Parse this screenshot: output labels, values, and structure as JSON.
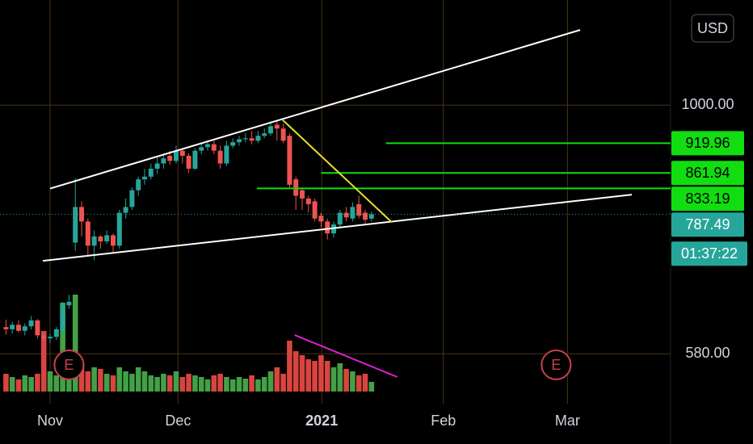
{
  "chart_data": {
    "type": "candlestick",
    "currency": "USD",
    "countdown": "01:37:22",
    "x": [
      -7,
      -6,
      -5,
      -4,
      -3,
      -2,
      -1,
      0,
      1,
      2,
      3,
      4,
      5,
      6,
      7,
      8,
      9,
      10,
      11,
      12,
      13,
      14,
      15,
      16,
      17,
      18,
      19,
      20,
      21,
      22,
      23,
      24,
      25,
      26,
      27,
      28,
      29,
      30,
      31,
      32,
      33,
      34,
      35,
      36,
      37,
      38,
      39,
      40,
      41,
      42,
      43,
      44,
      45,
      46,
      47,
      48,
      49,
      50,
      51
    ],
    "open": [
      615,
      612,
      618,
      610,
      616,
      624,
      604,
      600,
      602,
      609,
      645,
      740,
      800,
      775,
      735,
      750,
      742,
      752,
      735,
      790,
      800,
      830,
      850,
      855,
      870,
      880,
      895,
      885,
      905,
      895,
      870,
      905,
      912,
      918,
      905,
      880,
      915,
      922,
      928,
      930,
      925,
      935,
      940,
      958,
      950,
      935,
      850,
      830,
      815,
      810,
      785,
      775,
      755,
      770,
      790,
      780,
      805,
      790,
      780
    ],
    "high": [
      625,
      622,
      624,
      620,
      630,
      626,
      608,
      606,
      615,
      650,
      660,
      852,
      810,
      780,
      760,
      752,
      760,
      755,
      795,
      815,
      835,
      855,
      870,
      880,
      895,
      900,
      905,
      915,
      910,
      900,
      910,
      920,
      925,
      928,
      915,
      925,
      930,
      935,
      940,
      945,
      945,
      950,
      965,
      965,
      960,
      940,
      855,
      835,
      820,
      815,
      790,
      780,
      775,
      795,
      800,
      808,
      820,
      795,
      792
    ],
    "low": [
      605,
      606,
      608,
      604,
      612,
      600,
      596,
      594,
      598,
      607,
      640,
      727,
      750,
      718,
      712,
      730,
      738,
      725,
      730,
      780,
      795,
      820,
      840,
      850,
      860,
      870,
      878,
      880,
      880,
      862,
      868,
      898,
      905,
      898,
      870,
      875,
      910,
      915,
      922,
      918,
      920,
      930,
      935,
      925,
      920,
      835,
      795,
      795,
      790,
      775,
      765,
      745,
      748,
      765,
      775,
      775,
      780,
      772,
      775
    ],
    "close": [
      612,
      618,
      610,
      616,
      624,
      604,
      600,
      602,
      612,
      645,
      650,
      800,
      775,
      735,
      750,
      742,
      752,
      735,
      790,
      800,
      830,
      850,
      855,
      870,
      880,
      890,
      885,
      905,
      895,
      870,
      905,
      912,
      918,
      905,
      880,
      915,
      922,
      928,
      930,
      925,
      935,
      940,
      955,
      950,
      925,
      840,
      820,
      815,
      805,
      780,
      775,
      755,
      770,
      790,
      782,
      800,
      785,
      778,
      787.49
    ],
    "volume": [
      22,
      18,
      15,
      20,
      18,
      22,
      75,
      25,
      20,
      110,
      40,
      120,
      35,
      25,
      30,
      28,
      22,
      20,
      30,
      25,
      22,
      30,
      25,
      20,
      18,
      22,
      20,
      25,
      18,
      22,
      20,
      18,
      15,
      20,
      22,
      18,
      15,
      18,
      16,
      20,
      15,
      18,
      25,
      30,
      22,
      63,
      50,
      45,
      40,
      38,
      45,
      38,
      30,
      35,
      28,
      25,
      20,
      22,
      12
    ],
    "up_color": "#26a69a",
    "down_color": "#ef5350",
    "volume_up_color": "#43a047",
    "volume_down_color": "#d8443f",
    "xlim": [
      -7.95,
      98.46
    ],
    "xticks": [
      {
        "value": 0,
        "label": "Nov"
      },
      {
        "value": 20.3,
        "label": "Dec"
      },
      {
        "value": 43.1,
        "label": "2021"
      },
      {
        "value": 62.4,
        "label": "Feb"
      },
      {
        "value": 82.1,
        "label": "Mar"
      }
    ],
    "ylim": [
      534,
      1259
    ],
    "log_scale": true,
    "yticks": [
      {
        "value": 1000,
        "label": "1000.00"
      },
      {
        "value": 580,
        "label": "580.00"
      }
    ],
    "volume_lim": [
      0,
      130
    ],
    "grid": true,
    "grid_color": "#4a3218",
    "levels": [
      {
        "value": 919.96,
        "from": 53.3
      },
      {
        "value": 861.94,
        "from": 43
      },
      {
        "value": 833.19,
        "from": 32.8
      }
    ],
    "level_color": "#11dd11",
    "last_price_color": "#26a69a",
    "trendlines": [
      {
        "x1": 0,
        "p1": 833,
        "x2": 84.1,
        "p2": 1179,
        "color": "#ffffff"
      },
      {
        "x1": -1.15,
        "p1": 711,
        "x2": 92.3,
        "p2": 822,
        "color": "#ffffff"
      },
      {
        "x1": 36.9,
        "p1": 968,
        "x2": 54.2,
        "p2": 774,
        "color": "#e8e020"
      }
    ],
    "volume_trendline": {
      "x1": 38.8,
      "v1": 70,
      "x2": 55.1,
      "v2": 18,
      "color": "#e020d0"
    },
    "events": [
      {
        "x": 3,
        "label": "E"
      },
      {
        "x": 80.3,
        "label": "E"
      }
    ],
    "event_color": "#c8404a"
  }
}
